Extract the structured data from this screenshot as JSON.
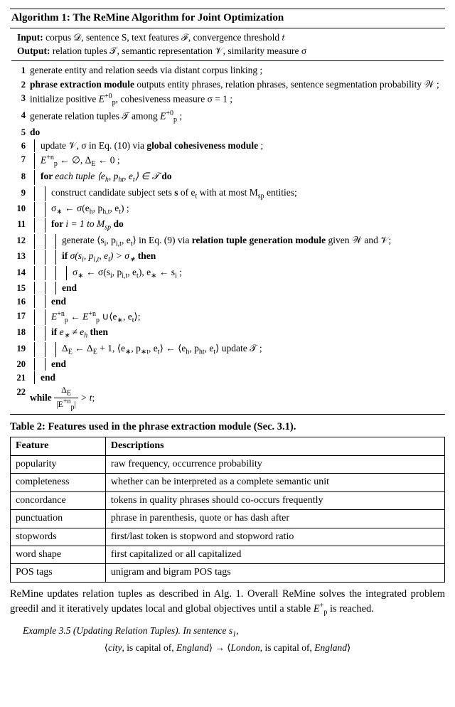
{
  "algo": {
    "title": "Algorithm 1: The ReMine Algorithm for Joint Optimization",
    "input_label": "Input:",
    "input_text": " corpus 𝒟, sentence S, text features ℱ, convergence threshold 𝑡",
    "output_label": "Output:",
    "output_text": " relation tuples 𝒯, semantic representation 𝒱, similarity measure σ",
    "l1": "generate entity and relation seeds via distant corpus linking ;",
    "l2a": "phrase extraction module",
    "l2b": " outputs entity phrases, relation phrases, sentence segmentation probability 𝒲 ;",
    "l3a": "initialize positive ",
    "l3b": ", cohesiveness measure σ = 1 ;",
    "l4a": "generate relation tuples 𝒯 among ",
    "l4b": " ;",
    "l5": "do",
    "l6a": "update 𝒱, σ in Eq. (10) via ",
    "l6b": "global cohesiveness module",
    "l6c": " ;",
    "l7b": " ← ∅, Δ",
    "l7c": " ← 0 ;",
    "l8a": "for ",
    "l8b": "each tuple ⟨e",
    "l8c": ", p",
    "l8d": ", e",
    "l8e": "⟩ ∈ 𝒯 ",
    "l8f": "do",
    "l9a": "construct candidate subject sets ",
    "l9b": "s",
    "l9c": " of e",
    "l9d": " with at most M",
    "l9e": " entities;",
    "l10a": "σ",
    "l10b": " ← σ(e",
    "l10c": ", p",
    "l10d": ", e",
    "l10e": ") ;",
    "l11a": "for ",
    "l11b": "i = 1 to M",
    "l11c": " do",
    "l12a": "generate ⟨s",
    "l12b": ", p",
    "l12c": ", e",
    "l12d": "⟩ in Eq. (9) via ",
    "l12e": "relation tuple generation module",
    "l12f": " given 𝒲 and 𝒱;",
    "l13a": "if ",
    "l13b": "σ(s",
    "l13c": ", p",
    "l13d": ", e",
    "l13e": ") > σ",
    "l13f": " then",
    "l14a": "σ",
    "l14b": " ← σ(s",
    "l14c": ", p",
    "l14d": ", e",
    "l14e": "), e",
    "l14f": " ← s",
    "l14g": " ;",
    "l15": "end",
    "l16": "end",
    "l17b": " ← ",
    "l17c": " ∪⟨e",
    "l17d": ", e",
    "l17e": "⟩;",
    "l18a": "if ",
    "l18b": "e",
    "l18c": " ≠ e",
    "l18d": " then",
    "l19a": "Δ",
    "l19b": " ← Δ",
    "l19c": " + 1, ⟨e",
    "l19d": ", p",
    "l19e": ", e",
    "l19f": "⟩ ← ⟨e",
    "l19g": ", p",
    "l19h": ", e",
    "l19i": "⟩ update 𝒯 ;",
    "l20": "end",
    "l21": "end",
    "l22a": "while ",
    "l22b": " > t",
    "l22c": ";",
    "frac_num_a": "Δ",
    "frac_den_a": "|E",
    "frac_den_b": "|",
    "Ep": "E",
    "Ep_sub": "p",
    "Ep_sup0": "+0",
    "Ep_supn": "+n",
    "Ep_supplus": "+",
    "sub_E": "E",
    "sub_h": "h",
    "sub_ht": "ht",
    "sub_h_t": "h,t",
    "sub_t": "t",
    "sub_sp": "sp",
    "sub_star": "∗",
    "sub_i": "i",
    "sub_i_t": "i,t",
    "sub_starst": "∗t",
    "sub_starr": "∗"
  },
  "table": {
    "caption": "Table 2: Features used in the phrase extraction module (Sec. 3.1).",
    "h1": "Feature",
    "h2": "Descriptions",
    "rows": [
      {
        "f": "popularity",
        "d": "raw frequency, occurrence probability"
      },
      {
        "f": "completeness",
        "d": "whether can be interpreted as a complete semantic unit"
      },
      {
        "f": "concordance",
        "d": "tokens in quality phrases should co-occurs frequently"
      },
      {
        "f": "punctuation",
        "d": "phrase in parenthesis, quote or has dash after"
      },
      {
        "f": "stopwords",
        "d": "first/last token is stopword and stopword ratio"
      },
      {
        "f": "word shape",
        "d": "first capitalized or all capitalized"
      },
      {
        "f": "POS tags",
        "d": "unigram and bigram POS tags"
      }
    ]
  },
  "para_a": "ReMine updates relation tuples as described in Alg. 1. Overall ReMine solves the integrated problem greedil and it iteratively updates local and global objectives until a stable ",
  "para_b": " is reached.",
  "example": {
    "hdr": "Example 3.5 (Updating Relation Tuples).  In sentence s",
    "hdr_sub": "1",
    "hdr_end": ",",
    "line2_a": "⟨",
    "line2_b": "city",
    "line2_c": ", is capital of, ",
    "line2_d": "England",
    "line2_e": "⟩ → ⟨",
    "line2_f": "London",
    "line2_g": ", is capital of, ",
    "line2_h": "England",
    "line2_i": "⟩"
  }
}
